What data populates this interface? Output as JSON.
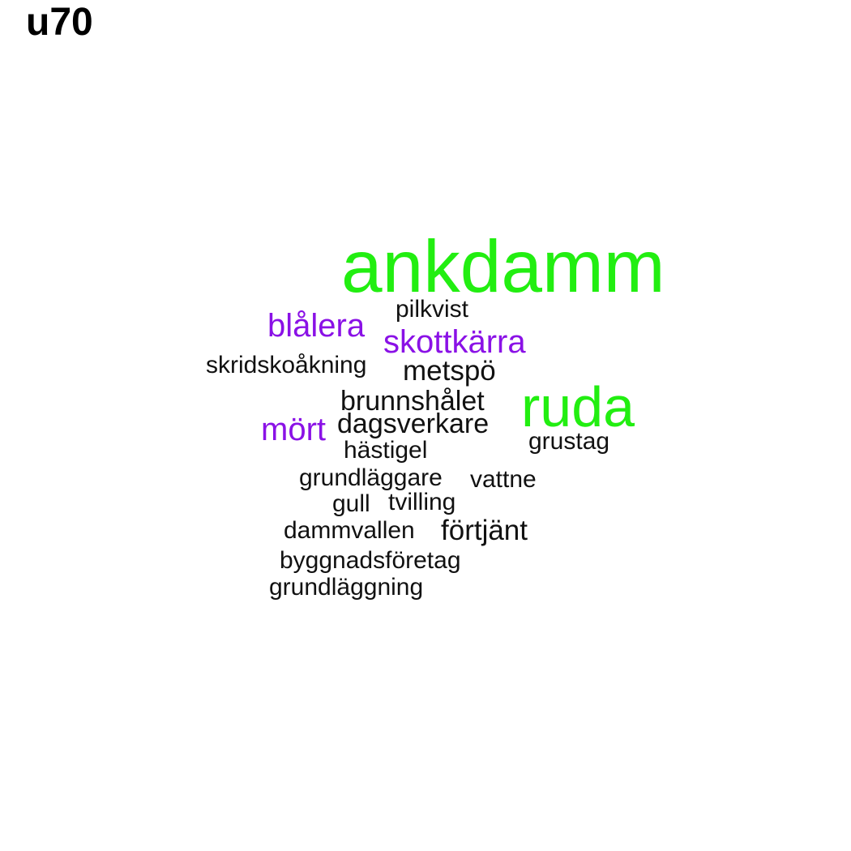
{
  "title": "u70",
  "colors": {
    "green": "#22ee11",
    "purple": "#8a11e6",
    "black": "#111111"
  },
  "words": [
    {
      "text": "ankdamm",
      "color": "green"
    },
    {
      "text": "ruda",
      "color": "green"
    },
    {
      "text": "pilkvist",
      "color": "black"
    },
    {
      "text": "blålera",
      "color": "purple"
    },
    {
      "text": "skottkärra",
      "color": "purple"
    },
    {
      "text": "skridskoåkning",
      "color": "black"
    },
    {
      "text": "metspö",
      "color": "black"
    },
    {
      "text": "brunnshålet",
      "color": "black"
    },
    {
      "text": "mört",
      "color": "purple"
    },
    {
      "text": "dagsverkare",
      "color": "black"
    },
    {
      "text": "grustag",
      "color": "black"
    },
    {
      "text": "hästigel",
      "color": "black"
    },
    {
      "text": "grundläggare",
      "color": "black"
    },
    {
      "text": "vattne",
      "color": "black"
    },
    {
      "text": "gull",
      "color": "black"
    },
    {
      "text": "tvilling",
      "color": "black"
    },
    {
      "text": "dammvallen",
      "color": "black"
    },
    {
      "text": "förtjänt",
      "color": "black"
    },
    {
      "text": "byggnadsföretag",
      "color": "black"
    },
    {
      "text": "grundläggning",
      "color": "black"
    }
  ]
}
